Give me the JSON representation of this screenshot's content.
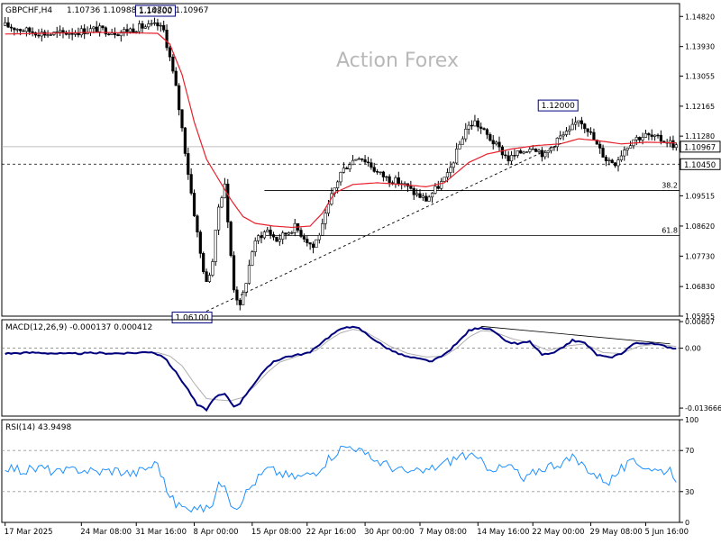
{
  "chart_data": {
    "type": "candlestick",
    "symbol_header": "GBPCHF,H4",
    "ohlc_header": "1.10736 1.10988 1.10700 1.10967",
    "watermark": "Action Forex",
    "colors": {
      "candle": "#000000",
      "moving_average": "#e8222e",
      "trendline": "#000000",
      "price_box_border": "#000080",
      "macd_line": "#00007f",
      "macd_signal": "#b0b0b0",
      "rsi_line": "#1e90ff",
      "grid_level": "#aaaaaa"
    },
    "main": {
      "ylim": [
        1.05955,
        1.152
      ],
      "y_ticks": [
        "1.14820",
        "1.13930",
        "1.13055",
        "1.12165",
        "1.11280",
        "1.10405",
        "1.09515",
        "1.08620",
        "1.07730",
        "1.06830",
        "1.05955"
      ],
      "horizontal_levels": [
        {
          "value": 1.1045,
          "label": "1.10450",
          "style": "dashed"
        },
        {
          "value": 1.0967,
          "label": "38.2",
          "style": "solid"
        },
        {
          "value": 1.0834,
          "label": "61.8",
          "style": "solid"
        }
      ],
      "current_price": {
        "value": 1.10967,
        "label": "1.10967"
      },
      "marked_prices": [
        {
          "label": "1.14800",
          "value": 1.148,
          "position": "top"
        },
        {
          "label": "1.06100",
          "value": 1.061,
          "position": "bottom"
        },
        {
          "label": "1.12000",
          "value": 1.12,
          "position": "top"
        }
      ],
      "trendline": {
        "from": {
          "date": "8 Apr 2025",
          "value": 1.061
        },
        "to": {
          "date": "23 May 2025",
          "value": 1.111
        }
      },
      "close_path": [
        [
          0,
          1.1455
        ],
        [
          7,
          1.144
        ],
        [
          14,
          1.143
        ],
        [
          22,
          1.1435
        ],
        [
          30,
          1.1445
        ],
        [
          37,
          1.1435
        ],
        [
          44,
          1.145
        ],
        [
          50,
          1.1455
        ],
        [
          52,
          1.144
        ],
        [
          54,
          1.136
        ],
        [
          56,
          1.127
        ],
        [
          58,
          1.115
        ],
        [
          60,
          1.102
        ],
        [
          62,
          1.09
        ],
        [
          64,
          1.078
        ],
        [
          66,
          1.069
        ],
        [
          68,
          1.076
        ],
        [
          70,
          1.092
        ],
        [
          72,
          1.099
        ],
        [
          73,
          1.087
        ],
        [
          75,
          1.068
        ],
        [
          77,
          1.062
        ],
        [
          79,
          1.07
        ],
        [
          81,
          1.079
        ],
        [
          83,
          1.083
        ],
        [
          86,
          1.085
        ],
        [
          89,
          1.082
        ],
        [
          92,
          1.084
        ],
        [
          95,
          1.086
        ],
        [
          98,
          1.083
        ],
        [
          101,
          1.08
        ],
        [
          104,
          1.086
        ],
        [
          107,
          1.095
        ],
        [
          110,
          1.102
        ],
        [
          113,
          1.105
        ],
        [
          116,
          1.107
        ],
        [
          119,
          1.105
        ],
        [
          122,
          1.102
        ],
        [
          126,
          1.1
        ],
        [
          130,
          1.099
        ],
        [
          134,
          1.096
        ],
        [
          138,
          1.094
        ],
        [
          142,
          1.098
        ],
        [
          145,
          1.101
        ],
        [
          148,
          1.108
        ],
        [
          151,
          1.115
        ],
        [
          154,
          1.117
        ],
        [
          157,
          1.114
        ],
        [
          161,
          1.11
        ],
        [
          165,
          1.106
        ],
        [
          169,
          1.108
        ],
        [
          173,
          1.11
        ],
        [
          177,
          1.107
        ],
        [
          181,
          1.112
        ],
        [
          185,
          1.114
        ],
        [
          188,
          1.118
        ],
        [
          191,
          1.115
        ],
        [
          194,
          1.11
        ],
        [
          197,
          1.106
        ],
        [
          200,
          1.105
        ],
        [
          203,
          1.109
        ],
        [
          206,
          1.112
        ],
        [
          210,
          1.113
        ],
        [
          214,
          1.112
        ],
        [
          218,
          1.111
        ],
        [
          220,
          1.1097
        ]
      ],
      "moving_average_path": [
        [
          0,
          1.143
        ],
        [
          30,
          1.1435
        ],
        [
          50,
          1.1432
        ],
        [
          54,
          1.14
        ],
        [
          58,
          1.131
        ],
        [
          62,
          1.117
        ],
        [
          66,
          1.106
        ],
        [
          70,
          1.1
        ],
        [
          74,
          1.094
        ],
        [
          78,
          1.089
        ],
        [
          82,
          1.087
        ],
        [
          88,
          1.0862
        ],
        [
          94,
          1.0858
        ],
        [
          100,
          1.0862
        ],
        [
          104,
          1.09
        ],
        [
          108,
          1.096
        ],
        [
          114,
          1.0985
        ],
        [
          122,
          1.099
        ],
        [
          130,
          1.0985
        ],
        [
          138,
          1.0978
        ],
        [
          144,
          1.099
        ],
        [
          148,
          1.102
        ],
        [
          152,
          1.105
        ],
        [
          158,
          1.1075
        ],
        [
          166,
          1.109
        ],
        [
          174,
          1.11
        ],
        [
          182,
          1.1105
        ],
        [
          188,
          1.112
        ],
        [
          194,
          1.1115
        ],
        [
          202,
          1.1105
        ],
        [
          210,
          1.111
        ],
        [
          220,
          1.1108
        ]
      ]
    },
    "macd": {
      "label": "MACD(12,26,9) -0.000137 0.000412",
      "ylim": [
        -0.0155,
        0.0065
      ],
      "y_ticks": [
        "0.00607",
        "0.00",
        "-0.013666"
      ],
      "line_path": [
        [
          0,
          -0.0012
        ],
        [
          10,
          -0.001
        ],
        [
          20,
          -0.0013
        ],
        [
          30,
          -0.0011
        ],
        [
          40,
          -0.0012
        ],
        [
          48,
          -0.0008
        ],
        [
          52,
          -0.002
        ],
        [
          56,
          -0.0055
        ],
        [
          60,
          -0.0095
        ],
        [
          63,
          -0.013
        ],
        [
          66,
          -0.014
        ],
        [
          69,
          -0.011
        ],
        [
          72,
          -0.0105
        ],
        [
          75,
          -0.0133
        ],
        [
          77,
          -0.0125
        ],
        [
          80,
          -0.0095
        ],
        [
          84,
          -0.006
        ],
        [
          88,
          -0.003
        ],
        [
          92,
          -0.002
        ],
        [
          96,
          -0.0015
        ],
        [
          100,
          -0.001
        ],
        [
          104,
          0.0015
        ],
        [
          108,
          0.0035
        ],
        [
          112,
          0.005
        ],
        [
          116,
          0.0045
        ],
        [
          120,
          0.0025
        ],
        [
          124,
          0.0005
        ],
        [
          128,
          -0.001
        ],
        [
          132,
          -0.002
        ],
        [
          136,
          -0.0025
        ],
        [
          140,
          -0.003
        ],
        [
          144,
          -0.0015
        ],
        [
          148,
          0.001
        ],
        [
          152,
          0.004
        ],
        [
          156,
          0.0048
        ],
        [
          160,
          0.004
        ],
        [
          164,
          0.0015
        ],
        [
          168,
          0.001
        ],
        [
          172,
          0.0015
        ],
        [
          176,
          -0.0015
        ],
        [
          180,
          -0.0012
        ],
        [
          186,
          0.0018
        ],
        [
          190,
          0.0012
        ],
        [
          194,
          -0.0015
        ],
        [
          198,
          -0.0022
        ],
        [
          202,
          -0.0012
        ],
        [
          206,
          0.001
        ],
        [
          210,
          0.0012
        ],
        [
          214,
          0.0008
        ],
        [
          220,
          -0.0001
        ]
      ],
      "signal_path": [
        [
          0,
          -0.001
        ],
        [
          20,
          -0.0011
        ],
        [
          40,
          -0.0011
        ],
        [
          50,
          -0.001
        ],
        [
          54,
          -0.0018
        ],
        [
          58,
          -0.004
        ],
        [
          62,
          -0.008
        ],
        [
          66,
          -0.0115
        ],
        [
          70,
          -0.0118
        ],
        [
          74,
          -0.012
        ],
        [
          78,
          -0.0112
        ],
        [
          82,
          -0.0085
        ],
        [
          86,
          -0.0055
        ],
        [
          90,
          -0.0032
        ],
        [
          96,
          -0.0018
        ],
        [
          102,
          -0.0005
        ],
        [
          106,
          0.0018
        ],
        [
          110,
          0.0035
        ],
        [
          114,
          0.0043
        ],
        [
          118,
          0.0038
        ],
        [
          122,
          0.0022
        ],
        [
          126,
          0.0005
        ],
        [
          132,
          -0.0012
        ],
        [
          138,
          -0.002
        ],
        [
          144,
          -0.0018
        ],
        [
          148,
          0.0
        ],
        [
          152,
          0.0025
        ],
        [
          156,
          0.004
        ],
        [
          160,
          0.0038
        ],
        [
          166,
          0.0022
        ],
        [
          172,
          0.0012
        ],
        [
          178,
          -0.0005
        ],
        [
          184,
          0.0005
        ],
        [
          190,
          0.001
        ],
        [
          196,
          -0.001
        ],
        [
          202,
          -0.0012
        ],
        [
          208,
          0.0005
        ],
        [
          214,
          0.0009
        ],
        [
          220,
          0.0004
        ]
      ],
      "trendline": {
        "from": [
          156,
          0.005
        ],
        "to": [
          218,
          0.001
        ]
      }
    },
    "rsi": {
      "label": "RSI(14) 43.9498",
      "ylim": [
        0,
        100
      ],
      "y_ticks": [
        "100",
        "70",
        "30",
        "0"
      ],
      "levels": [
        70,
        30
      ],
      "path": [
        [
          0,
          55
        ],
        [
          6,
          50
        ],
        [
          12,
          53
        ],
        [
          18,
          48
        ],
        [
          24,
          52
        ],
        [
          30,
          49
        ],
        [
          36,
          51
        ],
        [
          42,
          47
        ],
        [
          48,
          55
        ],
        [
          50,
          58
        ],
        [
          52,
          40
        ],
        [
          54,
          25
        ],
        [
          56,
          18
        ],
        [
          58,
          15
        ],
        [
          60,
          12
        ],
        [
          62,
          18
        ],
        [
          64,
          14
        ],
        [
          66,
          12
        ],
        [
          68,
          20
        ],
        [
          70,
          35
        ],
        [
          72,
          40
        ],
        [
          74,
          20
        ],
        [
          76,
          15
        ],
        [
          78,
          25
        ],
        [
          82,
          40
        ],
        [
          86,
          52
        ],
        [
          90,
          48
        ],
        [
          94,
          44
        ],
        [
          98,
          45
        ],
        [
          102,
          50
        ],
        [
          106,
          62
        ],
        [
          110,
          72
        ],
        [
          114,
          75
        ],
        [
          118,
          65
        ],
        [
          122,
          60
        ],
        [
          126,
          55
        ],
        [
          130,
          50
        ],
        [
          134,
          48
        ],
        [
          138,
          50
        ],
        [
          142,
          55
        ],
        [
          146,
          60
        ],
        [
          150,
          66
        ],
        [
          154,
          62
        ],
        [
          158,
          55
        ],
        [
          162,
          52
        ],
        [
          166,
          55
        ],
        [
          170,
          40
        ],
        [
          174,
          50
        ],
        [
          178,
          55
        ],
        [
          182,
          58
        ],
        [
          186,
          62
        ],
        [
          190,
          55
        ],
        [
          194,
          45
        ],
        [
          198,
          40
        ],
        [
          202,
          52
        ],
        [
          206,
          58
        ],
        [
          210,
          55
        ],
        [
          214,
          50
        ],
        [
          218,
          52
        ],
        [
          220,
          44
        ]
      ]
    },
    "x_axis": {
      "n_bars": 221,
      "ticks": [
        {
          "bar": 0,
          "label": "17 Mar 2025"
        },
        {
          "bar": 25,
          "label": "24 Mar 08:00"
        },
        {
          "bar": 43,
          "label": "31 Mar 16:00"
        },
        {
          "bar": 62,
          "label": "8 Apr 00:00"
        },
        {
          "bar": 81,
          "label": "15 Apr 08:00"
        },
        {
          "bar": 99,
          "label": "22 Apr 16:00"
        },
        {
          "bar": 118,
          "label": "30 Apr 00:00"
        },
        {
          "bar": 136,
          "label": "7 May 08:00"
        },
        {
          "bar": 155,
          "label": "14 May 16:00"
        },
        {
          "bar": 173,
          "label": "22 May 00:00"
        },
        {
          "bar": 192,
          "label": "29 May 08:00"
        },
        {
          "bar": 210,
          "label": "5 Jun 16:00"
        }
      ]
    }
  }
}
